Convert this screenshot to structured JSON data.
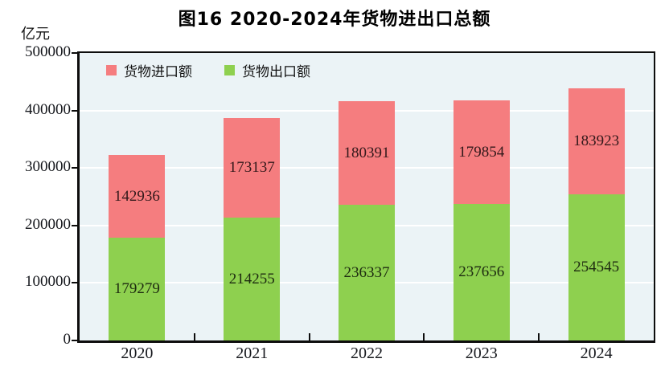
{
  "chart_data": {
    "type": "bar",
    "stacked": true,
    "title": "图16  2020-2024年货物进出口总额",
    "unit_label": "亿元",
    "categories": [
      "2020",
      "2021",
      "2022",
      "2023",
      "2024"
    ],
    "series": [
      {
        "key": "imports",
        "name": "货物进口额",
        "color": "#f57d7f",
        "label_color": "#33191b",
        "values": [
          142936,
          173137,
          180391,
          179854,
          183923
        ]
      },
      {
        "key": "exports",
        "name": "货物出口额",
        "color": "#8ed04f",
        "label_color": "#1d2a10",
        "values": [
          179279,
          214255,
          236337,
          237656,
          254545
        ]
      }
    ],
    "stack_bottom_to_top": [
      "exports",
      "imports"
    ],
    "ylim": [
      0,
      500000
    ],
    "ytick_step": 100000,
    "yticks": [
      "0",
      "100000",
      "200000",
      "300000",
      "400000",
      "500000"
    ],
    "grid": true,
    "gridline_color": "#ffffff",
    "plot_background": "#ebf3f6",
    "frame_color": "#0d0d0d",
    "legend_position": "top-left-inside"
  }
}
